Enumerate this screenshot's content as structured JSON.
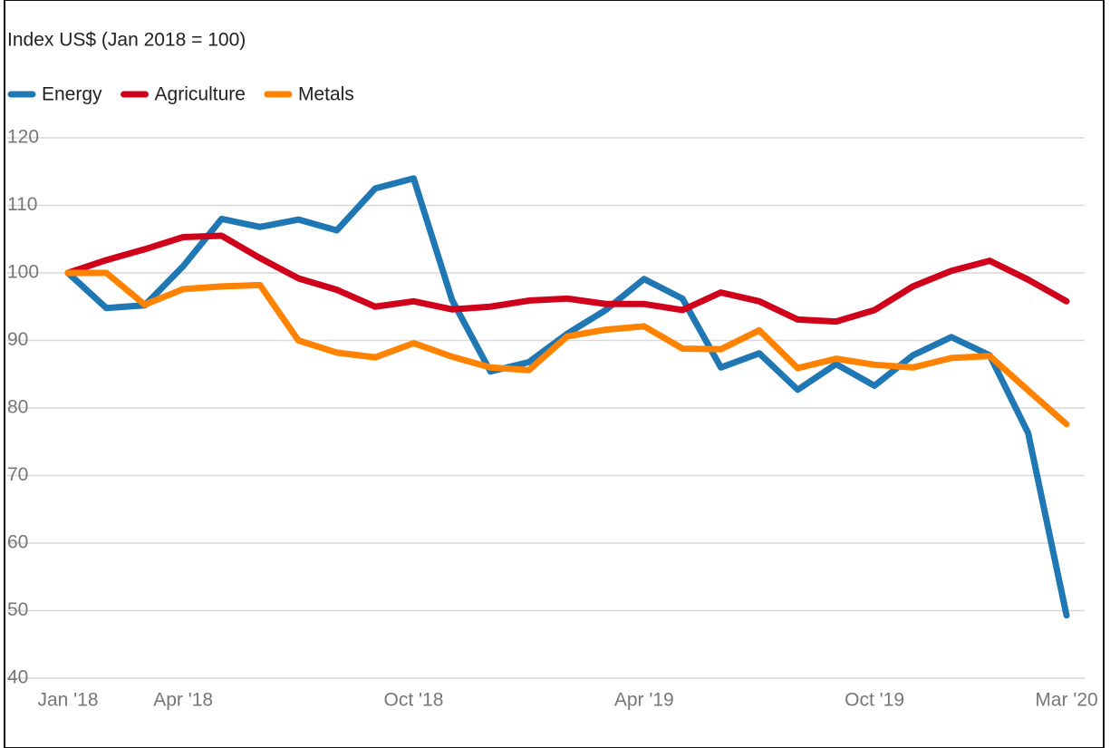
{
  "chart_data": {
    "type": "line",
    "title": "Index US$ (Jan 2018 = 100)",
    "categories": [
      "Jan '18",
      null,
      null,
      "Apr '18",
      null,
      null,
      null,
      null,
      null,
      "Oct '18",
      null,
      null,
      null,
      null,
      null,
      "Apr '19",
      null,
      null,
      null,
      null,
      null,
      "Oct '19",
      null,
      null,
      null,
      null,
      "Mar '20"
    ],
    "series": [
      {
        "name": "Energy",
        "color": "#1f77b4",
        "values": [
          100,
          94.8,
          95.2,
          101,
          108,
          106.8,
          107.9,
          106.3,
          112.5,
          114,
          96,
          85.4,
          86.8,
          91,
          94.5,
          99.1,
          96.2,
          86,
          88.1,
          82.7,
          86.5,
          83.3,
          87.8,
          90.5,
          87.8,
          76.3,
          49.3
        ]
      },
      {
        "name": "Agriculture",
        "color": "#d0021b",
        "values": [
          100,
          101.9,
          103.5,
          105.3,
          105.5,
          102.2,
          99.2,
          97.5,
          95,
          95.8,
          94.6,
          95,
          95.9,
          96.2,
          95.4,
          95.4,
          94.5,
          97.1,
          95.8,
          93.1,
          92.8,
          94.5,
          98,
          100.3,
          101.8,
          99,
          95.8
        ]
      },
      {
        "name": "Metals",
        "color": "#ff8200",
        "values": [
          100,
          100,
          95.3,
          97.6,
          98,
          98.2,
          90,
          88.2,
          87.5,
          89.6,
          87.6,
          86,
          85.6,
          90.6,
          91.6,
          92.1,
          88.8,
          88.7,
          91.5,
          85.9,
          87.3,
          86.4,
          86,
          87.4,
          87.7,
          82.6,
          77.6
        ]
      }
    ],
    "ylim": [
      40,
      120
    ],
    "yticks": [
      40,
      50,
      60,
      70,
      80,
      90,
      100,
      110,
      120
    ],
    "grid": true,
    "legend": "top-left"
  }
}
